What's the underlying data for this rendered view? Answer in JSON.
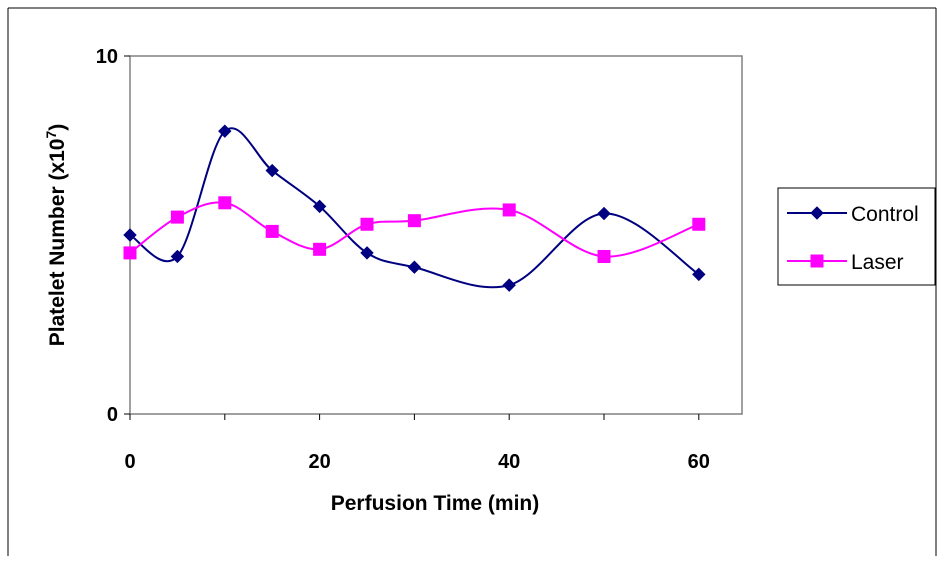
{
  "chart_data": {
    "type": "line",
    "title": "",
    "xlabel": "Perfusion Time (min)",
    "ylabel": {
      "main": "Platelet Number (x10",
      "superscript": "7",
      "close": ")"
    },
    "xlim": [
      0,
      66
    ],
    "ylim": [
      0,
      10
    ],
    "x_ticks": [
      "0",
      "20",
      "40",
      "60"
    ],
    "y_ticks": [
      "0",
      "10"
    ],
    "grid": false,
    "smoothed": true,
    "legend_position": "right",
    "series": [
      {
        "name": "Control",
        "color": "#000080",
        "marker": "diamond",
        "x": [
          0,
          5,
          10,
          15,
          20,
          25,
          30,
          40,
          50,
          60
        ],
        "y": [
          5.0,
          4.4,
          7.9,
          6.8,
          5.8,
          4.5,
          4.1,
          3.6,
          5.6,
          3.9
        ]
      },
      {
        "name": "Laser",
        "color": "#ff00ff",
        "marker": "square",
        "x": [
          0,
          5,
          10,
          15,
          20,
          25,
          30,
          40,
          50,
          60
        ],
        "y": [
          4.5,
          5.5,
          5.9,
          5.1,
          4.6,
          5.3,
          5.4,
          5.7,
          4.4,
          5.3
        ]
      }
    ]
  }
}
